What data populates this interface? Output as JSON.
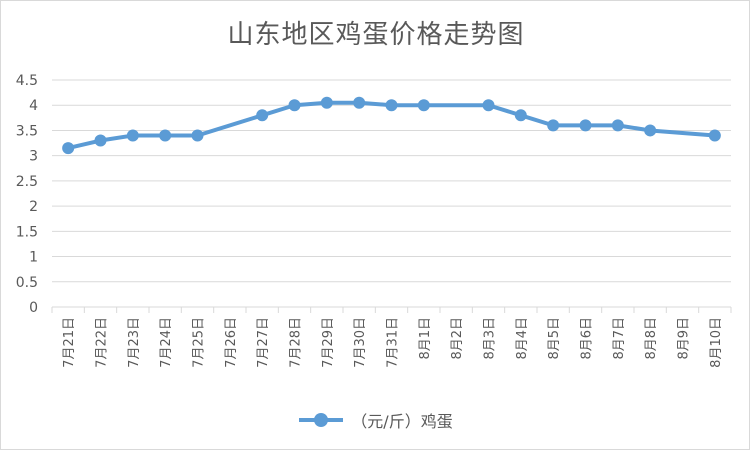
{
  "chart_data": {
    "type": "line",
    "title": "山东地区鸡蛋价格走势图",
    "categories": [
      "7月21日",
      "7月22日",
      "7月23日",
      "7月24日",
      "7月25日",
      "7月26日",
      "7月27日",
      "7月28日",
      "7月29日",
      "7月30日",
      "7月31日",
      "8月1日",
      "8月2日",
      "8月3日",
      "8月4日",
      "8月5日",
      "8月6日",
      "8月7日",
      "8月8日",
      "8月9日",
      "8月10日"
    ],
    "series": [
      {
        "name": "（元/斤）鸡蛋",
        "values": [
          3.15,
          3.3,
          3.4,
          3.4,
          3.4,
          null,
          3.8,
          4.0,
          4.05,
          4.05,
          4.0,
          4.0,
          null,
          4.0,
          3.8,
          3.6,
          3.6,
          3.6,
          3.5,
          null,
          3.4
        ],
        "color": "#5b9bd5"
      }
    ],
    "ylim": [
      0,
      4.5
    ],
    "yticks": [
      "0",
      "0.5",
      "1",
      "1.5",
      "2",
      "2.5",
      "3",
      "3.5",
      "4",
      "4.5"
    ],
    "grid": true,
    "legend_position": "bottom"
  }
}
